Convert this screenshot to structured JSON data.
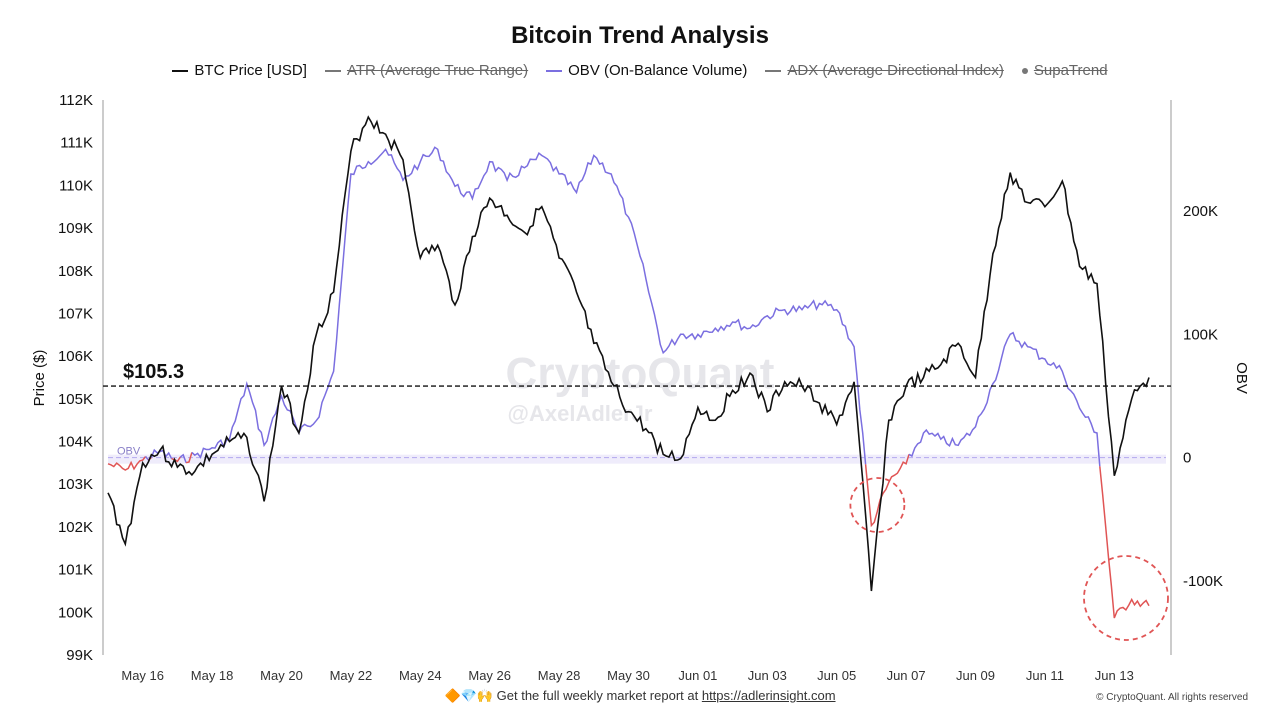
{
  "chart_data": {
    "type": "line",
    "title": "Bitcoin Trend Analysis",
    "legend": [
      {
        "label": "BTC Price [USD]",
        "color": "#111111",
        "visible": true,
        "marker": "line"
      },
      {
        "label": "ATR (Average True Range)",
        "color": "#777777",
        "visible": false,
        "marker": "line"
      },
      {
        "label": "OBV (On-Balance Volume)",
        "color": "#7b6fe0",
        "visible": true,
        "marker": "line"
      },
      {
        "label": "ADX (Average Directional Index)",
        "color": "#777777",
        "visible": false,
        "marker": "line"
      },
      {
        "label": "SupaTrend",
        "color": "#777777",
        "visible": false,
        "marker": "dot"
      }
    ],
    "ylabel_left": "Price ($)",
    "ylabel_right": "OBV",
    "ylim_left": [
      99000,
      112000
    ],
    "ylim_right": [
      -160000,
      290000
    ],
    "yticks_left": [
      "99K",
      "100K",
      "101K",
      "102K",
      "103K",
      "104K",
      "105K",
      "106K",
      "107K",
      "108K",
      "109K",
      "110K",
      "111K",
      "112K"
    ],
    "yticks_right": [
      "-100K",
      "0",
      "100K",
      "200K"
    ],
    "xticks": [
      "May 16",
      "May 18",
      "May 20",
      "May 22",
      "May 24",
      "May 26",
      "May 28",
      "May 30",
      "Jun 01",
      "Jun 03",
      "Jun 05",
      "Jun 07",
      "Jun 09",
      "Jun 11",
      "Jun 13"
    ],
    "reference_line": {
      "value": 105300,
      "label": "$105.3"
    },
    "obv_zero_label": "OBV",
    "series": [
      {
        "name": "BTC Price [USD]",
        "color": "#111111",
        "x": [
          "May 15",
          "May 15 12:00",
          "May 16",
          "May 16 12:00",
          "May 17",
          "May 17 12:00",
          "May 18",
          "May 18 12:00",
          "May 19",
          "May 19 12:00",
          "May 20",
          "May 20 12:00",
          "May 21",
          "May 21 12:00",
          "May 22",
          "May 22 12:00",
          "May 23",
          "May 23 12:00",
          "May 24",
          "May 24 12:00",
          "May 25",
          "May 25 12:00",
          "May 26",
          "May 26 12:00",
          "May 27",
          "May 27 12:00",
          "May 28",
          "May 28 12:00",
          "May 29",
          "May 29 12:00",
          "May 30",
          "May 30 12:00",
          "May 31",
          "May 31 12:00",
          "Jun 01",
          "Jun 01 12:00",
          "Jun 02",
          "Jun 02 12:00",
          "Jun 03",
          "Jun 03 12:00",
          "Jun 04",
          "Jun 04 12:00",
          "Jun 05",
          "Jun 05 12:00",
          "Jun 06",
          "Jun 06 12:00",
          "Jun 07",
          "Jun 07 12:00",
          "Jun 08",
          "Jun 08 12:00",
          "Jun 09",
          "Jun 09 12:00",
          "Jun 10",
          "Jun 10 12:00",
          "Jun 11",
          "Jun 11 12:00",
          "Jun 12",
          "Jun 12 12:00",
          "Jun 13",
          "Jun 13 12:00",
          "Jun 14"
        ],
        "values": [
          102800,
          101600,
          103500,
          103800,
          103400,
          103300,
          103700,
          104000,
          104100,
          102600,
          105300,
          104200,
          106500,
          107500,
          110800,
          111600,
          111200,
          110600,
          108300,
          108600,
          107200,
          108800,
          109700,
          109300,
          108900,
          109500,
          108300,
          107500,
          106300,
          105400,
          104700,
          104300,
          103700,
          103600,
          104800,
          104500,
          105200,
          105600,
          104700,
          105400,
          105300,
          104900,
          104400,
          105400,
          100500,
          104500,
          105300,
          105500,
          105800,
          106300,
          105500,
          108400,
          110300,
          109600,
          109500,
          110100,
          108100,
          107700,
          103200,
          105000,
          105500
        ]
      },
      {
        "name": "OBV (On-Balance Volume)",
        "color": "#7b6fe0",
        "negative_color": "#e05555",
        "x": [
          "May 15",
          "May 15 12:00",
          "May 16",
          "May 16 12:00",
          "May 17",
          "May 17 12:00",
          "May 18",
          "May 18 12:00",
          "May 19",
          "May 19 12:00",
          "May 20",
          "May 20 12:00",
          "May 21",
          "May 21 12:00",
          "May 22",
          "May 22 12:00",
          "May 23",
          "May 23 12:00",
          "May 24",
          "May 24 12:00",
          "May 25",
          "May 25 12:00",
          "May 26",
          "May 26 12:00",
          "May 27",
          "May 27 12:00",
          "May 28",
          "May 28 12:00",
          "May 29",
          "May 29 12:00",
          "May 30",
          "May 30 12:00",
          "May 31",
          "May 31 12:00",
          "Jun 01",
          "Jun 01 12:00",
          "Jun 02",
          "Jun 02 12:00",
          "Jun 03",
          "Jun 03 12:00",
          "Jun 04",
          "Jun 04 12:00",
          "Jun 05",
          "Jun 05 12:00",
          "Jun 06",
          "Jun 06 12:00",
          "Jun 07",
          "Jun 07 12:00",
          "Jun 08",
          "Jun 08 12:00",
          "Jun 09",
          "Jun 09 12:00",
          "Jun 10",
          "Jun 10 12:00",
          "Jun 11",
          "Jun 11 12:00",
          "Jun 12",
          "Jun 12 12:00",
          "Jun 13",
          "Jun 13 12:00",
          "Jun 14"
        ],
        "values": [
          -5000,
          -10000,
          -2000,
          5000,
          -3000,
          2000,
          8000,
          15000,
          60000,
          10000,
          50000,
          20000,
          30000,
          70000,
          230000,
          240000,
          250000,
          225000,
          240000,
          250000,
          220000,
          210000,
          240000,
          225000,
          235000,
          245000,
          230000,
          215000,
          245000,
          230000,
          195000,
          145000,
          85000,
          100000,
          100000,
          105000,
          110000,
          105000,
          115000,
          120000,
          120000,
          125000,
          120000,
          90000,
          -55000,
          -20000,
          -5000,
          20000,
          15000,
          10000,
          25000,
          60000,
          100000,
          90000,
          80000,
          70000,
          40000,
          20000,
          -130000,
          -115000,
          -120000
        ]
      }
    ],
    "annotations": [
      {
        "type": "dashed-circle",
        "color": "#e05555",
        "near": "Jun 06"
      },
      {
        "type": "dashed-circle",
        "color": "#e05555",
        "near": "Jun 14"
      }
    ],
    "watermark": {
      "line1": "CryptoQuant",
      "line2": "@AxelAdlerJr"
    }
  },
  "footer": {
    "emoji": "🔶💎🙌",
    "text": "Get the full weekly market report at ",
    "link_text": "https://adlerinsight.com"
  },
  "copyright": "© CryptoQuant. All rights reserved"
}
